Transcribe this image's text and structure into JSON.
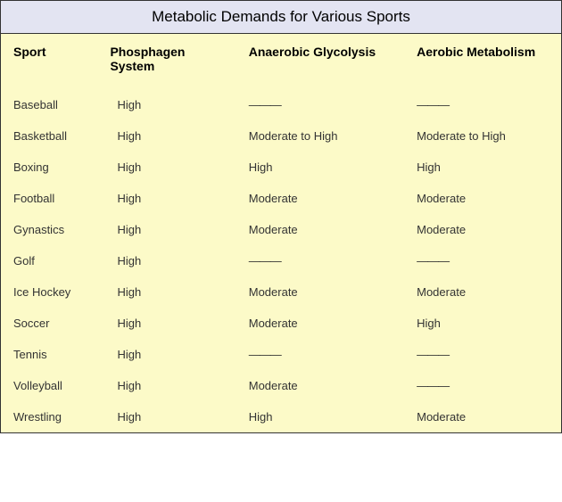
{
  "title": "Metabolic Demands for Various Sports",
  "colors": {
    "table_bg": "#fcfac8",
    "header_bg": "#e3e4f2",
    "border": "#333333",
    "text": "#000000",
    "cell_text": "#333333"
  },
  "typography": {
    "font_family": "Verdana, Geneva, sans-serif",
    "title_fontsize": 17,
    "header_fontsize": 14,
    "cell_fontsize": 13
  },
  "columns": [
    {
      "key": "sport",
      "label": "Sport",
      "width_pct": 16
    },
    {
      "key": "phosphagen",
      "label": "Phosphagen System",
      "width_pct": 26
    },
    {
      "key": "anaerobic",
      "label": "Anaerobic Glycolysis",
      "width_pct": 30
    },
    {
      "key": "aerobic",
      "label": "Aerobic Metabolism",
      "width_pct": 28
    }
  ],
  "rows": [
    {
      "sport": "Baseball",
      "phosphagen": "High",
      "anaerobic": "———",
      "aerobic": "———"
    },
    {
      "sport": "Basketball",
      "phosphagen": "High",
      "anaerobic": "Moderate to High",
      "aerobic": "Moderate to High"
    },
    {
      "sport": "Boxing",
      "phosphagen": "High",
      "anaerobic": "High",
      "aerobic": "High"
    },
    {
      "sport": "Football",
      "phosphagen": "High",
      "anaerobic": "Moderate",
      "aerobic": "Moderate"
    },
    {
      "sport": "Gynastics",
      "phosphagen": "High",
      "anaerobic": "Moderate",
      "aerobic": "Moderate"
    },
    {
      "sport": "Golf",
      "phosphagen": "High",
      "anaerobic": "———",
      "aerobic": "———"
    },
    {
      "sport": "Ice Hockey",
      "phosphagen": "High",
      "anaerobic": "Moderate",
      "aerobic": "Moderate"
    },
    {
      "sport": "Soccer",
      "phosphagen": "High",
      "anaerobic": "Moderate",
      "aerobic": "High"
    },
    {
      "sport": "Tennis",
      "phosphagen": "High",
      "anaerobic": "———",
      "aerobic": "———"
    },
    {
      "sport": "Volleyball",
      "phosphagen": "High",
      "anaerobic": "Moderate",
      "aerobic": "———"
    },
    {
      "sport": "Wrestling",
      "phosphagen": "High",
      "anaerobic": "High",
      "aerobic": "Moderate"
    }
  ]
}
